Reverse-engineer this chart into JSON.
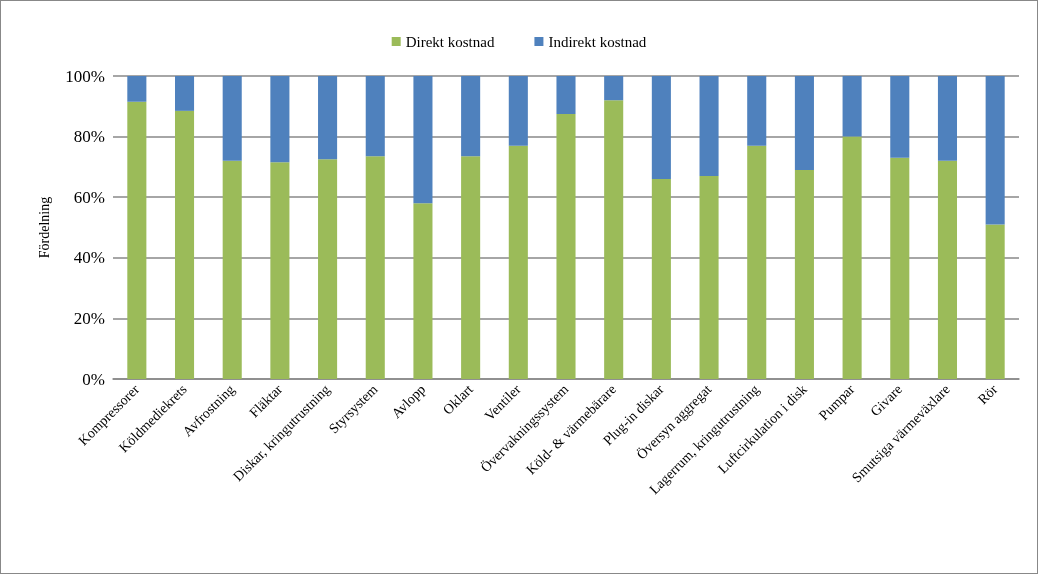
{
  "chart_data": {
    "type": "bar",
    "stacked": true,
    "ylabel": "Fördelning",
    "categories": [
      "Kompressorer",
      "Köldmediekrets",
      "Avfrostning",
      "Fläktar",
      "Diskar, kringutrustning",
      "Styrsystem",
      "Avlopp",
      "Oklart",
      "Ventiler",
      "Övervakningssystem",
      "Köld- & värmebärare",
      "Plug-in diskar",
      "Översyn aggregat",
      "Lagerrum, kringutrustning",
      "Luftcirkulation i disk",
      "Pumpar",
      "Givare",
      "Smutsiga värmeväxlare",
      "Rör"
    ],
    "series": [
      {
        "name": "Direkt kostnad",
        "color": "#9bbb59",
        "values": [
          91.5,
          88.5,
          72,
          71.5,
          72.5,
          73.5,
          58,
          73.5,
          77,
          87.5,
          92,
          66,
          67,
          77,
          69,
          80,
          73,
          72,
          51
        ]
      },
      {
        "name": "Indirekt kostnad",
        "color": "#4f81bd",
        "values": [
          8.5,
          11.5,
          28,
          28.5,
          27.5,
          26.5,
          42,
          26.5,
          23,
          12.5,
          8,
          34,
          33,
          23,
          31,
          20,
          27,
          28,
          49
        ]
      }
    ],
    "ylim": [
      0,
      100
    ],
    "yticks": [
      {
        "value": 0,
        "label": "0%"
      },
      {
        "value": 20,
        "label": "20%"
      },
      {
        "value": 40,
        "label": "40%"
      },
      {
        "value": 60,
        "label": "60%"
      },
      {
        "value": 80,
        "label": "80%"
      },
      {
        "value": 100,
        "label": "100%"
      }
    ],
    "grid": "y",
    "legend": "top"
  }
}
